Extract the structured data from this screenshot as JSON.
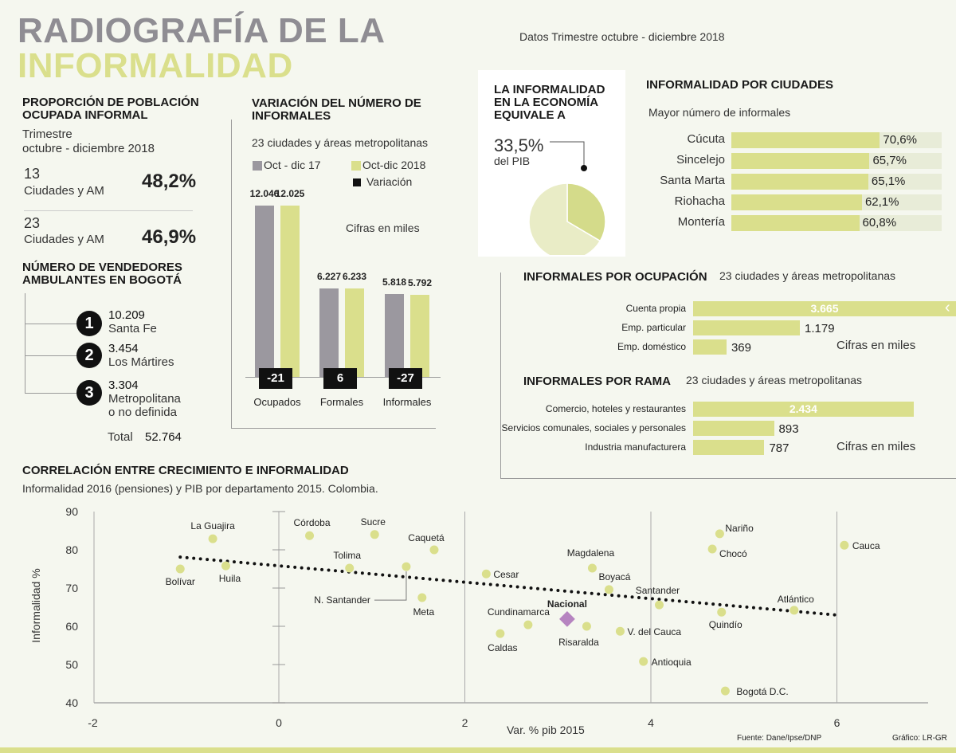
{
  "header": {
    "title_line1": "RADIOGRAFÍA DE LA",
    "title_line2": "INFORMALIDAD",
    "date_note": "Datos Trimestre octubre - diciembre 2018",
    "colors": {
      "title_gray": "#8f8d93",
      "accent_green": "#dadf8c",
      "gray_bar": "#9b989f",
      "nacional_purple": "#b684c0"
    }
  },
  "proporcion": {
    "title": "PROPORCIÓN DE POBLACIÓN OCUPADA INFORMAL",
    "period_line1": "Trimestre",
    "period_line2": "octubre - diciembre 2018",
    "rows": [
      {
        "count": "13",
        "label": "Ciudades y AM",
        "value": "48,2%"
      },
      {
        "count": "23",
        "label": "Ciudades y AM",
        "value": "46,9%"
      }
    ]
  },
  "vendedores": {
    "title": "NÚMERO DE VENDEDORES AMBULANTES EN BOGOTÁ",
    "items": [
      {
        "rank": "1",
        "value": "10.209",
        "name": "Santa Fe"
      },
      {
        "rank": "2",
        "value": "3.454",
        "name": "Los Mártires"
      },
      {
        "rank": "3",
        "value": "3.304",
        "name": "Metropolitana",
        "name2": "o no definida"
      }
    ],
    "total_label": "Total",
    "total_value": "52.764"
  },
  "chart_data": [
    {
      "type": "bar",
      "title": "VARIACIÓN DEL NÚMERO DE INFORMALES",
      "subtitle": "23 ciudades y áreas metropolitanas",
      "note": "Cifras en miles",
      "legend": [
        "Oct - dic 17",
        "Oct-dic 2018",
        "Variación"
      ],
      "categories": [
        "Ocupados",
        "Formales",
        "Informales"
      ],
      "series": [
        {
          "name": "Oct - dic 17",
          "values": [
            12046,
            6227,
            5818
          ],
          "labels": [
            "12.046",
            "6.227",
            "5.818"
          ]
        },
        {
          "name": "Oct-dic 2018",
          "values": [
            12025,
            6233,
            5792
          ],
          "labels": [
            "12.025",
            "6.233",
            "5.792"
          ]
        }
      ],
      "variation": [
        "-21",
        "6",
        "-27"
      ]
    },
    {
      "type": "pie",
      "title": "LA INFORMALIDAD EN  LA ECONOMÍA EQUIVALE A",
      "value_label": "33,5%",
      "value_sub": "del PIB",
      "values": [
        33.5,
        66.5
      ]
    },
    {
      "type": "bar",
      "orientation": "horizontal",
      "title": "INFORMALIDAD POR CIUDADES",
      "subtitle": "Mayor número de informales",
      "categories": [
        "Cúcuta",
        "Sincelejo",
        "Santa Marta",
        "Riohacha",
        "Montería"
      ],
      "values": [
        70.6,
        65.7,
        65.1,
        62.1,
        60.8
      ],
      "labels": [
        "70,6%",
        "65,7%",
        "65,1%",
        "62,1%",
        "60,8%"
      ],
      "xlim": [
        0,
        100
      ]
    },
    {
      "type": "bar",
      "orientation": "horizontal",
      "title": "INFORMALES POR OCUPACIÓN",
      "subtitle": "23 ciudades y áreas metropolitanas",
      "note": "Cifras en miles",
      "categories": [
        "Cuenta propia",
        "Emp. particular",
        "Emp. doméstico"
      ],
      "values": [
        3665,
        1179,
        369
      ],
      "labels": [
        "3.665",
        "1.179",
        "369"
      ]
    },
    {
      "type": "bar",
      "orientation": "horizontal",
      "title": "INFORMALES POR RAMA",
      "subtitle": "23 ciudades y áreas metropolitanas",
      "note": "Cifras en miles",
      "categories": [
        "Comercio, hoteles y restaurantes",
        "Servicios comunales, sociales y personales",
        "Industria manufacturera"
      ],
      "values": [
        2434,
        893,
        787
      ],
      "labels": [
        "2.434",
        "893",
        "787"
      ]
    },
    {
      "type": "scatter",
      "title": "CORRELACIÓN ENTRE CRECIMIENTO E INFORMALIDAD",
      "subtitle": "Informalidad 2016 (pensiones) y PIB por departamento 2015. Colombia.",
      "xlabel": "Var. % pib 2015",
      "ylabel": "Informalidad %",
      "xlim": [
        -2,
        7
      ],
      "ylim": [
        40,
        90
      ],
      "xticks": [
        -2,
        0,
        2,
        4,
        6
      ],
      "yticks": [
        40,
        50,
        60,
        70,
        80,
        90
      ],
      "grid": "vertical",
      "trendline": {
        "style": "dotted",
        "from": [
          -1.06,
          78.1
        ],
        "to": [
          6.02,
          62.9
        ]
      },
      "points": [
        {
          "name": "Bolívar",
          "x": -1.06,
          "y": 75.0
        },
        {
          "name": "La Guajira",
          "x": -0.71,
          "y": 82.9
        },
        {
          "name": "Huila",
          "x": -0.57,
          "y": 75.8
        },
        {
          "name": "Córdoba",
          "x": 0.33,
          "y": 83.7
        },
        {
          "name": "Sucre",
          "x": 1.03,
          "y": 84.0
        },
        {
          "name": "Tolima",
          "x": 0.76,
          "y": 75.2
        },
        {
          "name": "N. Santander",
          "x": 1.37,
          "y": 75.6
        },
        {
          "name": "Caquetá",
          "x": 1.67,
          "y": 80.0
        },
        {
          "name": "Meta",
          "x": 1.54,
          "y": 67.5
        },
        {
          "name": "Cesar",
          "x": 2.23,
          "y": 73.7
        },
        {
          "name": "Cundinamarca",
          "x": 2.68,
          "y": 60.4
        },
        {
          "name": "Caldas",
          "x": 2.38,
          "y": 58.1
        },
        {
          "name": "Nacional",
          "x": 3.1,
          "y": 61.9,
          "highlight": true
        },
        {
          "name": "Risaralda",
          "x": 3.31,
          "y": 60.0
        },
        {
          "name": "Magdalena",
          "x": 3.37,
          "y": 75.2
        },
        {
          "name": "Boyacá",
          "x": 3.55,
          "y": 69.6
        },
        {
          "name": "V. del Cauca",
          "x": 3.67,
          "y": 58.7
        },
        {
          "name": "Antioquia",
          "x": 3.92,
          "y": 50.8
        },
        {
          "name": "Santander",
          "x": 4.09,
          "y": 65.6
        },
        {
          "name": "Nariño",
          "x": 4.74,
          "y": 84.2
        },
        {
          "name": "Chocó",
          "x": 4.66,
          "y": 80.2
        },
        {
          "name": "Quindío",
          "x": 4.76,
          "y": 63.7
        },
        {
          "name": "Bogotá D.C.",
          "x": 4.8,
          "y": 43.1
        },
        {
          "name": "Atlántico",
          "x": 5.54,
          "y": 64.2
        },
        {
          "name": "Cauca",
          "x": 6.08,
          "y": 81.2
        }
      ]
    }
  ],
  "footer": {
    "source": "Fuente: Dane/Ipse/DNP",
    "credit": "Gráfico: LR-GR"
  }
}
